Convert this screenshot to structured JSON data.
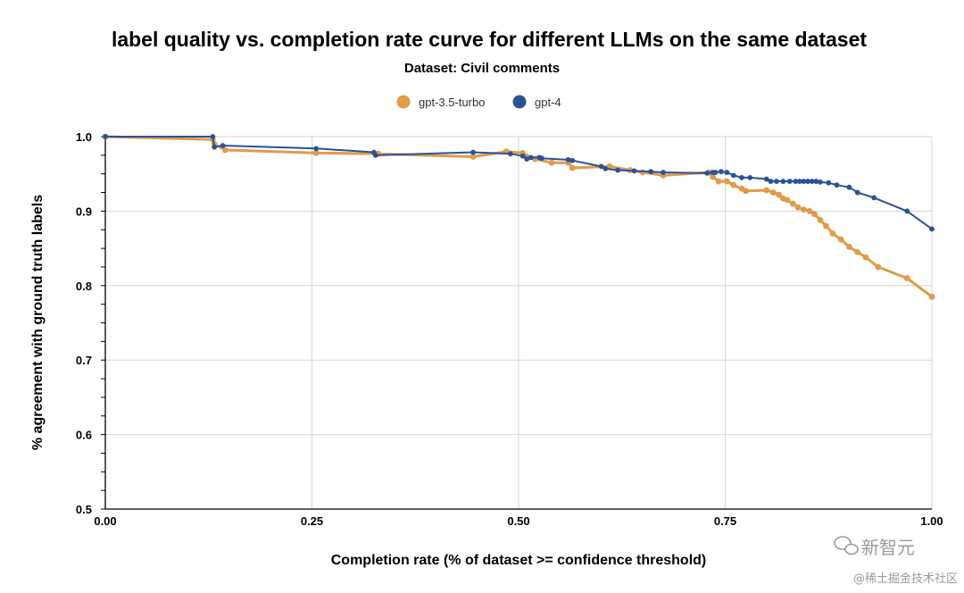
{
  "chart_data": {
    "type": "line",
    "title": "label quality vs. completion rate curve for different LLMs on the same dataset",
    "subtitle": "Dataset: Civil comments",
    "xlabel": "Completion rate (% of dataset >= confidence threshold)",
    "ylabel": "% agreement with ground truth labels",
    "xlim": [
      0,
      1
    ],
    "ylim": [
      0.5,
      1.0
    ],
    "x_ticks": [
      "0.00",
      "0.25",
      "0.50",
      "0.75",
      "1.00"
    ],
    "x_tick_values": [
      0,
      0.25,
      0.5,
      0.75,
      1.0
    ],
    "y_ticks": [
      "0.5",
      "0.6",
      "0.7",
      "0.8",
      "0.9",
      "1.0"
    ],
    "y_tick_values": [
      0.5,
      0.6,
      0.7,
      0.8,
      0.9,
      1.0
    ],
    "grid": true,
    "legend_position": "top-center",
    "series": [
      {
        "name": "gpt-3.5-turbo",
        "color": "#e09b4b",
        "x": [
          0.0,
          0.13,
          0.132,
          0.145,
          0.255,
          0.33,
          0.445,
          0.485,
          0.505,
          0.51,
          0.52,
          0.54,
          0.56,
          0.565,
          0.61,
          0.635,
          0.65,
          0.675,
          0.73,
          0.735,
          0.742,
          0.752,
          0.76,
          0.77,
          0.775,
          0.8,
          0.808,
          0.815,
          0.82,
          0.825,
          0.832,
          0.838,
          0.845,
          0.852,
          0.858,
          0.865,
          0.872,
          0.88,
          0.89,
          0.9,
          0.91,
          0.92,
          0.935,
          0.97,
          1.0
        ],
        "y": [
          1.0,
          0.996,
          0.99,
          0.982,
          0.978,
          0.977,
          0.973,
          0.98,
          0.978,
          0.973,
          0.97,
          0.965,
          0.965,
          0.958,
          0.96,
          0.955,
          0.952,
          0.948,
          0.952,
          0.946,
          0.94,
          0.94,
          0.935,
          0.93,
          0.927,
          0.928,
          0.925,
          0.922,
          0.917,
          0.915,
          0.91,
          0.905,
          0.902,
          0.9,
          0.896,
          0.888,
          0.88,
          0.87,
          0.862,
          0.852,
          0.845,
          0.838,
          0.825,
          0.81,
          0.785
        ]
      },
      {
        "name": "gpt-4",
        "color": "#2a5297",
        "x": [
          0.0,
          0.13,
          0.132,
          0.142,
          0.255,
          0.325,
          0.327,
          0.445,
          0.49,
          0.505,
          0.51,
          0.515,
          0.525,
          0.528,
          0.56,
          0.565,
          0.6,
          0.605,
          0.62,
          0.64,
          0.66,
          0.675,
          0.728,
          0.735,
          0.738,
          0.745,
          0.752,
          0.76,
          0.77,
          0.78,
          0.8,
          0.805,
          0.812,
          0.82,
          0.828,
          0.835,
          0.84,
          0.845,
          0.85,
          0.855,
          0.86,
          0.865,
          0.875,
          0.885,
          0.9,
          0.91,
          0.93,
          0.97,
          1.0
        ],
        "y": [
          1.0,
          1.0,
          0.986,
          0.988,
          0.984,
          0.979,
          0.975,
          0.979,
          0.977,
          0.974,
          0.97,
          0.972,
          0.972,
          0.971,
          0.969,
          0.968,
          0.96,
          0.957,
          0.955,
          0.954,
          0.953,
          0.952,
          0.951,
          0.952,
          0.952,
          0.953,
          0.952,
          0.948,
          0.945,
          0.945,
          0.943,
          0.94,
          0.94,
          0.94,
          0.94,
          0.94,
          0.94,
          0.94,
          0.94,
          0.94,
          0.94,
          0.939,
          0.938,
          0.935,
          0.932,
          0.925,
          0.918,
          0.9,
          0.876
        ]
      }
    ]
  },
  "watermark": {
    "brand": "新智元",
    "source": "@稀土掘金技术社区"
  }
}
